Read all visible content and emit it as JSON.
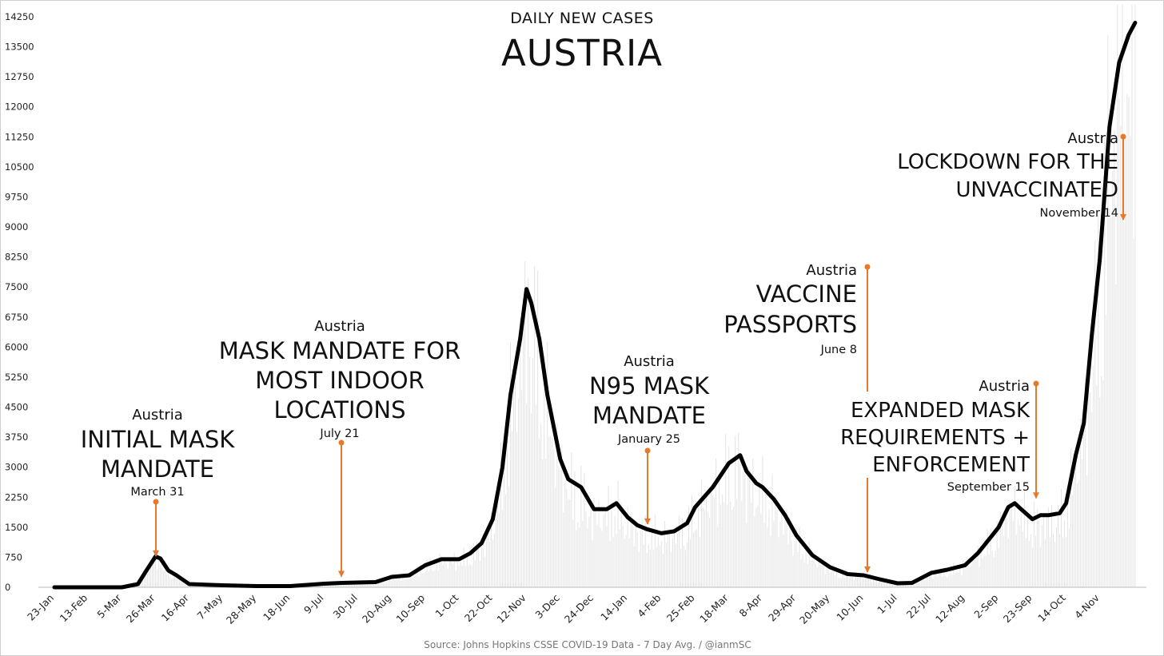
{
  "chart_data": {
    "type": "line",
    "subtitle": "DAILY NEW CASES",
    "title": "AUSTRIA",
    "source": "Source: Johns Hopkins CSSE COVID-19 Data - 7 Day Avg. / @ianmSC",
    "ylim": [
      0,
      14250
    ],
    "y_ticks": [
      "0",
      "750",
      "1500",
      "2250",
      "3000",
      "3750",
      "4500",
      "5250",
      "6000",
      "6750",
      "7500",
      "8250",
      "9000",
      "9750",
      "10500",
      "11250",
      "12000",
      "12750",
      "13500",
      "14250"
    ],
    "x_ticks": [
      "23-Jan",
      "13-Feb",
      "5-Mar",
      "26-Mar",
      "16-Apr",
      "7-May",
      "28-May",
      "18-Jun",
      "9-Jul",
      "30-Jul",
      "20-Aug",
      "10-Sep",
      "1-Oct",
      "22-Oct",
      "12-Nov",
      "3-Dec",
      "24-Dec",
      "14-Jan",
      "4-Feb",
      "25-Feb",
      "18-Mar",
      "8-Apr",
      "29-Apr",
      "20-May",
      "10-Jun",
      "1-Jul",
      "22-Jul",
      "12-Aug",
      "2-Sep",
      "23-Sep",
      "14-Oct",
      "4-Nov"
    ],
    "grid": false,
    "series": [
      {
        "name": "",
        "x": [
          "23-Jan",
          "13-Feb",
          "5-Mar",
          "15-Mar",
          "20-Mar",
          "26-Mar",
          "29-Mar",
          "3-Apr",
          "8-Apr",
          "16-Apr",
          "7-May",
          "28-May",
          "18-Jun",
          "9-Jul",
          "20-Jul",
          "30-Jul",
          "10-Aug",
          "20-Aug",
          "31-Aug",
          "10-Sep",
          "20-Sep",
          "1-Oct",
          "8-Oct",
          "15-Oct",
          "22-Oct",
          "28-Oct",
          "2-Nov",
          "8-Nov",
          "12-Nov",
          "15-Nov",
          "20-Nov",
          "25-Nov",
          "3-Dec",
          "8-Dec",
          "12-Dec",
          "16-Dec",
          "24-Dec",
          "1-Jan",
          "7-Jan",
          "14-Jan",
          "20-Jan",
          "26-Jan",
          "4-Feb",
          "12-Feb",
          "20-Feb",
          "25-Feb",
          "8-Mar",
          "18-Mar",
          "25-Mar",
          "29-Mar",
          "4-Apr",
          "8-Apr",
          "15-Apr",
          "22-Apr",
          "29-Apr",
          "9-May",
          "20-May",
          "31-May",
          "10-Jun",
          "20-Jun",
          "1-Jul",
          "10-Jul",
          "22-Jul",
          "1-Aug",
          "12-Aug",
          "20-Aug",
          "29-Aug",
          "2-Sep",
          "8-Sep",
          "12-Sep",
          "16-Sep",
          "23-Sep",
          "28-Sep",
          "3-Oct",
          "10-Oct",
          "14-Oct",
          "20-Oct",
          "25-Oct",
          "30-Oct",
          "4-Nov",
          "10-Nov",
          "16-Nov",
          "22-Nov",
          "26-Nov"
        ],
        "values": [
          0,
          0,
          0,
          80,
          400,
          770,
          720,
          420,
          300,
          80,
          50,
          30,
          30,
          90,
          110,
          120,
          130,
          260,
          300,
          550,
          700,
          700,
          850,
          1100,
          1700,
          3000,
          4800,
          6200,
          7450,
          7100,
          6200,
          4800,
          3200,
          2700,
          2600,
          2500,
          1950,
          1950,
          2100,
          1750,
          1550,
          1450,
          1350,
          1400,
          1600,
          2000,
          2500,
          3100,
          3300,
          2900,
          2600,
          2500,
          2200,
          1800,
          1300,
          800,
          500,
          330,
          300,
          200,
          100,
          110,
          360,
          440,
          550,
          850,
          1300,
          1500,
          2000,
          2100,
          1950,
          1700,
          1800,
          1800,
          1850,
          2100,
          3300,
          4100,
          6300,
          8200,
          11500,
          13100,
          13800,
          14100
        ]
      }
    ],
    "annotations": [
      {
        "pre": "Austria",
        "lines": [
          "INITIAL MASK",
          "MANDATE"
        ],
        "date": "March 31",
        "target_x": "31-Mar",
        "target_y": 700
      },
      {
        "pre": "Austria",
        "lines": [
          "MASK MANDATE FOR",
          "MOST INDOOR",
          "LOCATIONS"
        ],
        "date": "July 21",
        "target_x": "21-Jul",
        "target_y": 190
      },
      {
        "pre": "Austria",
        "lines": [
          "N95 MASK",
          "MANDATE"
        ],
        "date": "January 25",
        "target_x": "25-Jan",
        "target_y": 1500
      },
      {
        "pre": "Austria",
        "lines": [
          "VACCINE",
          "PASSPORTS"
        ],
        "date": "June 8",
        "target_x": "8-Jun",
        "target_y": 300
      },
      {
        "pre": "Austria",
        "lines": [
          "EXPANDED MASK",
          "REQUIREMENTS +",
          "ENFORCEMENT"
        ],
        "date": "September 15",
        "target_x": "15-Sep",
        "target_y": 2150
      },
      {
        "pre": "Austria",
        "lines": [
          "LOCKDOWN FOR THE",
          "UNVACCINATED"
        ],
        "date": "November 14",
        "target_x": "14-Nov",
        "target_y": 9100
      }
    ],
    "colors": {
      "line": "#000000",
      "bars": "#e4e4e4",
      "arrows": "#e8782a",
      "text": "#111111",
      "axis_text": "#222222",
      "source": "#777777"
    }
  }
}
